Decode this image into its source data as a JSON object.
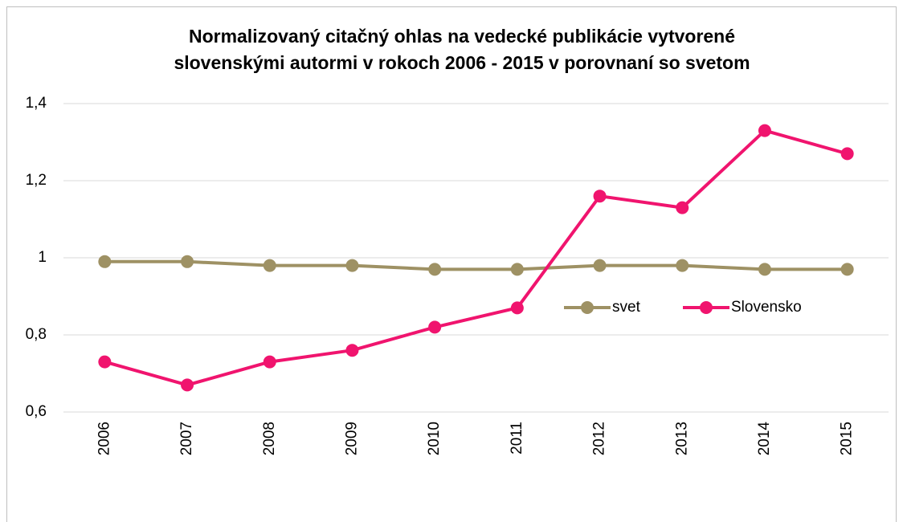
{
  "chart_data": {
    "type": "line",
    "title": [
      "Normalizovaný citačný ohlas na vedecké publikácie vytvorené",
      "slovenskými autormi v rokoch 2006 - 2015 v porovnaní so svetom"
    ],
    "categories": [
      "2006",
      "2007",
      "2008",
      "2009",
      "2010",
      "2011",
      "2012",
      "2013",
      "2014",
      "2015"
    ],
    "series": [
      {
        "name": "svet",
        "color": "#9e9164",
        "values": [
          0.99,
          0.99,
          0.98,
          0.98,
          0.97,
          0.97,
          0.98,
          0.98,
          0.97,
          0.97
        ]
      },
      {
        "name": "Slovensko",
        "color": "#f0146e",
        "values": [
          0.73,
          0.67,
          0.73,
          0.76,
          0.82,
          0.87,
          1.16,
          1.13,
          1.33,
          1.27
        ]
      }
    ],
    "ylim": [
      0.6,
      1.4
    ],
    "yticks": [
      {
        "value": 0.6,
        "label": "0,6"
      },
      {
        "value": 0.8,
        "label": "0,8"
      },
      1,
      {
        "value": 1.2,
        "label": "1,2"
      },
      {
        "value": 1.4,
        "label": "1,4"
      }
    ],
    "grid": true,
    "legend": "center-right"
  }
}
